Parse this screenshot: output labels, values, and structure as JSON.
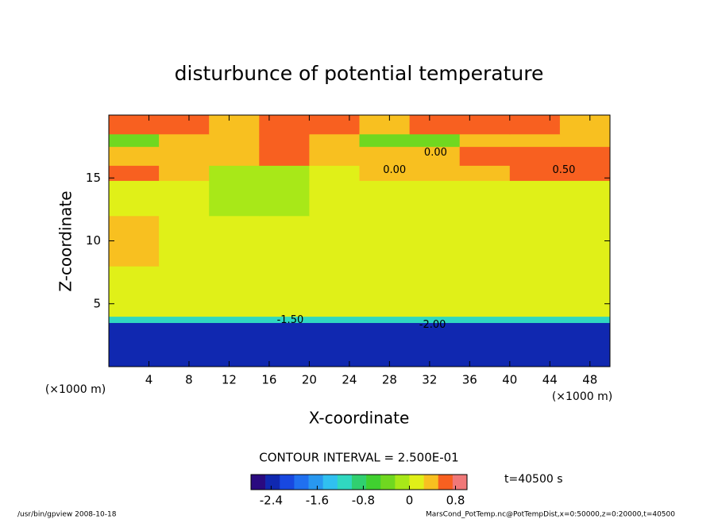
{
  "chart_data": {
    "type": "contourf",
    "title": "disturbunce of potential temperature",
    "xlabel": "X-coordinate",
    "ylabel": "Z-coordinate",
    "axis_notes": [
      "(×1000 m)",
      "(×1000 m)"
    ],
    "xlim": [
      0,
      50
    ],
    "xticks": [
      4,
      8,
      12,
      16,
      20,
      24,
      28,
      32,
      36,
      40,
      44,
      48
    ],
    "ylim": [
      0,
      20
    ],
    "yticks": [
      5,
      10,
      15
    ],
    "x_edges": [
      0,
      5,
      10,
      15,
      20,
      25,
      30,
      35,
      40,
      45,
      50
    ],
    "z_edges": [
      0,
      3.5,
      4,
      8,
      12,
      14.8,
      16,
      17.5,
      18.5,
      20
    ],
    "field": [
      [
        -2.3,
        -2.3,
        -2.3,
        -2.3,
        -2.3,
        -2.3,
        -2.3,
        -2.3,
        -2.3,
        -2.3
      ],
      [
        -1.2,
        -1.2,
        -1.2,
        -1.2,
        -1.2,
        -1.2,
        -1.2,
        -1.2,
        -1.2,
        -1.2
      ],
      [
        0.1,
        0.1,
        0.1,
        0.1,
        0.1,
        0.1,
        0.1,
        0.1,
        0.1,
        0.1
      ],
      [
        0.3,
        0.2,
        0.1,
        0.1,
        0.1,
        0.1,
        0.15,
        0.1,
        0.1,
        0.15
      ],
      [
        0.15,
        0.1,
        -0.1,
        -0.1,
        0.0,
        0.1,
        0.15,
        0.15,
        0.15,
        0.2
      ],
      [
        0.5,
        0.3,
        -0.2,
        -0.2,
        0.1,
        0.3,
        0.4,
        0.4,
        0.55,
        0.5
      ],
      [
        0.4,
        0.4,
        0.3,
        0.6,
        0.4,
        0.4,
        0.45,
        0.55,
        0.65,
        0.6
      ],
      [
        -0.3,
        0.35,
        0.4,
        0.5,
        0.3,
        -0.3,
        -0.3,
        0.35,
        0.35,
        0.4
      ],
      [
        0.5,
        0.55,
        0.45,
        0.5,
        0.6,
        0.45,
        0.5,
        0.55,
        0.5,
        0.45
      ]
    ],
    "contour_labels": [
      {
        "text": "0.00",
        "x": 28.5,
        "y": 15.6
      },
      {
        "text": "0.00",
        "x": 32.6,
        "y": 17.0
      },
      {
        "text": "0.50",
        "x": 45.4,
        "y": 15.6
      },
      {
        "text": "-1.50",
        "x": 18.1,
        "y": 3.7
      },
      {
        "text": "-2.00",
        "x": 32.3,
        "y": 3.3
      }
    ],
    "contour_interval_label": "CONTOUR INTERVAL = 2.500E-01",
    "time_label": "t=40500 s",
    "clim": [
      -2.75,
      1.0
    ],
    "colorbar_ticks": [
      -2.4,
      -1.6,
      -0.8,
      0,
      0.8
    ],
    "colormap": [
      "#2a0a80",
      "#1028b0",
      "#1848e0",
      "#2070f0",
      "#2898f0",
      "#30c0f0",
      "#30d8c0",
      "#30d070",
      "#40d030",
      "#70d820",
      "#a8e818",
      "#e0f018",
      "#f8c020",
      "#f86020",
      "#f07878"
    ],
    "footer_left": "/usr/bin/gpview   2008-10-18",
    "footer_right": "MarsCond_PotTemp.nc@PotTempDist,x=0:50000,z=0:20000,t=40500"
  }
}
